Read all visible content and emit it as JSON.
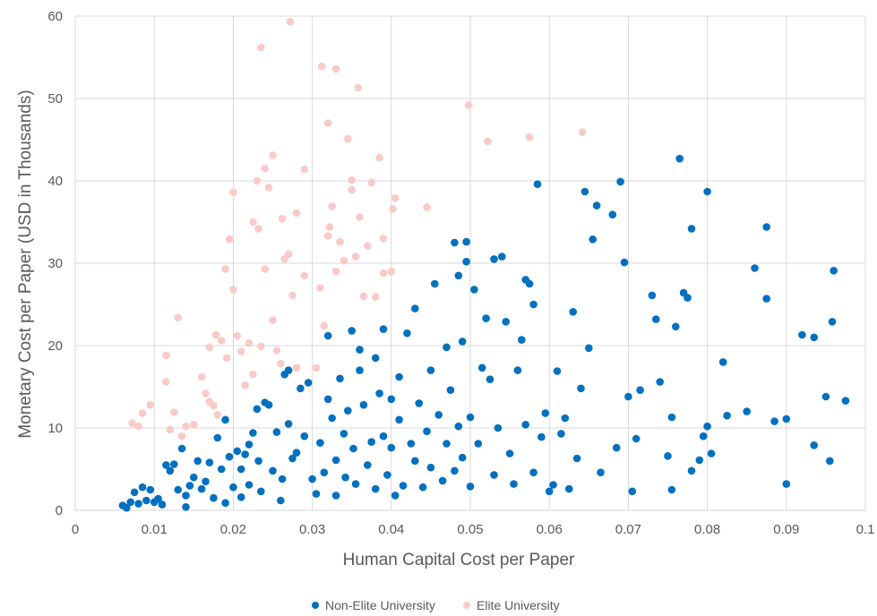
{
  "chart_data": {
    "type": "scatter",
    "title": "",
    "xlabel": "Human Capital Cost per Paper",
    "ylabel": "Monetary Cost per Paper (USD in Thousands)",
    "xlim": [
      0,
      0.1
    ],
    "ylim": [
      0,
      60
    ],
    "x_ticks": [
      "0",
      "0.01",
      "0.02",
      "0.03",
      "0.04",
      "0.05",
      "0.06",
      "0.07",
      "0.08",
      "0.09",
      "0.1"
    ],
    "y_ticks": [
      "0",
      "10",
      "20",
      "30",
      "40",
      "50",
      "60"
    ],
    "grid": true,
    "legend_position": "bottom",
    "series": [
      {
        "name": "Non-Elite University",
        "color": "#0070c0",
        "points": [
          [
            0.006,
            0.6
          ],
          [
            0.0065,
            0.3
          ],
          [
            0.007,
            1.0
          ],
          [
            0.0075,
            2.2
          ],
          [
            0.008,
            0.8
          ],
          [
            0.0085,
            2.8
          ],
          [
            0.009,
            1.2
          ],
          [
            0.0095,
            2.5
          ],
          [
            0.01,
            1.0
          ],
          [
            0.0105,
            1.4
          ],
          [
            0.011,
            0.7
          ],
          [
            0.0115,
            5.5
          ],
          [
            0.012,
            4.8
          ],
          [
            0.0125,
            5.6
          ],
          [
            0.013,
            2.5
          ],
          [
            0.0135,
            7.5
          ],
          [
            0.014,
            1.8
          ],
          [
            0.014,
            0.4
          ],
          [
            0.0145,
            3.0
          ],
          [
            0.015,
            4.0
          ],
          [
            0.0155,
            6.0
          ],
          [
            0.016,
            2.6
          ],
          [
            0.0165,
            3.5
          ],
          [
            0.017,
            5.8
          ],
          [
            0.0175,
            1.5
          ],
          [
            0.018,
            8.8
          ],
          [
            0.0185,
            5.0
          ],
          [
            0.019,
            11.0
          ],
          [
            0.019,
            0.9
          ],
          [
            0.0195,
            6.5
          ],
          [
            0.02,
            2.8
          ],
          [
            0.0205,
            7.2
          ],
          [
            0.021,
            1.6
          ],
          [
            0.021,
            5.0
          ],
          [
            0.0215,
            6.8
          ],
          [
            0.022,
            3.1
          ],
          [
            0.022,
            8.0
          ],
          [
            0.0225,
            9.4
          ],
          [
            0.023,
            12.3
          ],
          [
            0.0232,
            6.0
          ],
          [
            0.0235,
            2.3
          ],
          [
            0.024,
            13.1
          ],
          [
            0.0245,
            12.8
          ],
          [
            0.025,
            4.8
          ],
          [
            0.0255,
            9.5
          ],
          [
            0.026,
            1.2
          ],
          [
            0.0262,
            3.8
          ],
          [
            0.0265,
            16.5
          ],
          [
            0.027,
            17.0
          ],
          [
            0.027,
            10.5
          ],
          [
            0.0275,
            6.3
          ],
          [
            0.028,
            7.0
          ],
          [
            0.0285,
            14.8
          ],
          [
            0.029,
            9.0
          ],
          [
            0.0295,
            15.5
          ],
          [
            0.03,
            3.8
          ],
          [
            0.0305,
            2.0
          ],
          [
            0.031,
            8.2
          ],
          [
            0.0315,
            4.6
          ],
          [
            0.032,
            13.5
          ],
          [
            0.032,
            21.2
          ],
          [
            0.0325,
            11.2
          ],
          [
            0.033,
            1.8
          ],
          [
            0.033,
            6.1
          ],
          [
            0.0335,
            16.0
          ],
          [
            0.034,
            9.3
          ],
          [
            0.0342,
            4.0
          ],
          [
            0.0345,
            12.1
          ],
          [
            0.035,
            21.8
          ],
          [
            0.0352,
            7.5
          ],
          [
            0.0355,
            3.2
          ],
          [
            0.036,
            17.0
          ],
          [
            0.036,
            19.5
          ],
          [
            0.0365,
            12.8
          ],
          [
            0.037,
            5.5
          ],
          [
            0.0375,
            8.3
          ],
          [
            0.038,
            18.5
          ],
          [
            0.038,
            2.6
          ],
          [
            0.0385,
            14.2
          ],
          [
            0.039,
            22.0
          ],
          [
            0.039,
            9.0
          ],
          [
            0.0395,
            4.3
          ],
          [
            0.04,
            13.5
          ],
          [
            0.04,
            7.6
          ],
          [
            0.0405,
            1.8
          ],
          [
            0.041,
            16.2
          ],
          [
            0.041,
            11.0
          ],
          [
            0.0415,
            3.0
          ],
          [
            0.042,
            21.5
          ],
          [
            0.0425,
            8.1
          ],
          [
            0.043,
            24.5
          ],
          [
            0.043,
            6.0
          ],
          [
            0.0435,
            13.0
          ],
          [
            0.044,
            2.8
          ],
          [
            0.0445,
            9.6
          ],
          [
            0.045,
            17.0
          ],
          [
            0.045,
            5.2
          ],
          [
            0.0455,
            27.5
          ],
          [
            0.046,
            11.6
          ],
          [
            0.0465,
            3.6
          ],
          [
            0.047,
            19.8
          ],
          [
            0.047,
            8.1
          ],
          [
            0.0475,
            14.6
          ],
          [
            0.048,
            4.8
          ],
          [
            0.048,
            32.5
          ],
          [
            0.0485,
            28.5
          ],
          [
            0.0485,
            10.2
          ],
          [
            0.049,
            20.5
          ],
          [
            0.049,
            6.4
          ],
          [
            0.0495,
            32.6
          ],
          [
            0.0495,
            30.2
          ],
          [
            0.05,
            11.3
          ],
          [
            0.05,
            2.9
          ],
          [
            0.0505,
            26.8
          ],
          [
            0.051,
            8.1
          ],
          [
            0.0515,
            17.3
          ],
          [
            0.052,
            23.3
          ],
          [
            0.0525,
            15.9
          ],
          [
            0.053,
            4.3
          ],
          [
            0.053,
            30.5
          ],
          [
            0.0535,
            10.0
          ],
          [
            0.054,
            30.8
          ],
          [
            0.0545,
            22.9
          ],
          [
            0.055,
            6.9
          ],
          [
            0.0555,
            3.2
          ],
          [
            0.056,
            17.0
          ],
          [
            0.0565,
            20.7
          ],
          [
            0.057,
            28.0
          ],
          [
            0.057,
            10.4
          ],
          [
            0.0575,
            27.5
          ],
          [
            0.058,
            25.0
          ],
          [
            0.058,
            4.6
          ],
          [
            0.0585,
            39.6
          ],
          [
            0.059,
            8.9
          ],
          [
            0.0595,
            11.8
          ],
          [
            0.06,
            2.3
          ],
          [
            0.0605,
            3.1
          ],
          [
            0.061,
            16.9
          ],
          [
            0.0615,
            9.3
          ],
          [
            0.062,
            11.2
          ],
          [
            0.0625,
            2.6
          ],
          [
            0.063,
            24.1
          ],
          [
            0.0635,
            6.3
          ],
          [
            0.064,
            14.8
          ],
          [
            0.0645,
            38.7
          ],
          [
            0.065,
            19.7
          ],
          [
            0.0655,
            32.9
          ],
          [
            0.066,
            37.0
          ],
          [
            0.0665,
            4.6
          ],
          [
            0.068,
            35.9
          ],
          [
            0.0685,
            7.6
          ],
          [
            0.069,
            39.9
          ],
          [
            0.0695,
            30.1
          ],
          [
            0.07,
            13.8
          ],
          [
            0.0705,
            2.3
          ],
          [
            0.071,
            8.7
          ],
          [
            0.0715,
            14.6
          ],
          [
            0.073,
            26.1
          ],
          [
            0.0735,
            23.2
          ],
          [
            0.074,
            15.6
          ],
          [
            0.075,
            6.6
          ],
          [
            0.0755,
            11.3
          ],
          [
            0.0755,
            2.5
          ],
          [
            0.076,
            22.3
          ],
          [
            0.0765,
            42.7
          ],
          [
            0.077,
            26.4
          ],
          [
            0.0775,
            25.8
          ],
          [
            0.078,
            34.2
          ],
          [
            0.078,
            4.8
          ],
          [
            0.079,
            6.1
          ],
          [
            0.0795,
            9.0
          ],
          [
            0.08,
            10.2
          ],
          [
            0.08,
            38.7
          ],
          [
            0.0805,
            6.9
          ],
          [
            0.082,
            18.0
          ],
          [
            0.0825,
            11.5
          ],
          [
            0.085,
            12.0
          ],
          [
            0.086,
            29.4
          ],
          [
            0.0875,
            25.7
          ],
          [
            0.0875,
            34.4
          ],
          [
            0.0885,
            10.8
          ],
          [
            0.09,
            11.1
          ],
          [
            0.09,
            3.2
          ],
          [
            0.092,
            21.3
          ],
          [
            0.0935,
            21.0
          ],
          [
            0.0935,
            7.9
          ],
          [
            0.095,
            13.8
          ],
          [
            0.0955,
            6.0
          ],
          [
            0.0958,
            22.9
          ],
          [
            0.096,
            29.1
          ],
          [
            0.0975,
            13.3
          ]
        ]
      },
      {
        "name": "Elite University",
        "color": "#f8cbc9",
        "points": [
          [
            0.0072,
            10.6
          ],
          [
            0.008,
            10.2
          ],
          [
            0.0085,
            11.8
          ],
          [
            0.0095,
            12.8
          ],
          [
            0.0115,
            18.8
          ],
          [
            0.0115,
            15.6
          ],
          [
            0.012,
            9.8
          ],
          [
            0.0125,
            11.9
          ],
          [
            0.013,
            23.4
          ],
          [
            0.0135,
            9.0
          ],
          [
            0.014,
            10.2
          ],
          [
            0.015,
            10.4
          ],
          [
            0.016,
            16.2
          ],
          [
            0.0165,
            14.2
          ],
          [
            0.017,
            19.8
          ],
          [
            0.017,
            13.2
          ],
          [
            0.0175,
            12.7
          ],
          [
            0.0178,
            21.3
          ],
          [
            0.018,
            11.6
          ],
          [
            0.0185,
            20.6
          ],
          [
            0.019,
            29.3
          ],
          [
            0.0192,
            18.5
          ],
          [
            0.0195,
            32.9
          ],
          [
            0.02,
            38.6
          ],
          [
            0.02,
            26.8
          ],
          [
            0.0205,
            21.2
          ],
          [
            0.021,
            19.3
          ],
          [
            0.0215,
            15.2
          ],
          [
            0.022,
            20.3
          ],
          [
            0.0225,
            35.0
          ],
          [
            0.0225,
            16.5
          ],
          [
            0.023,
            40.0
          ],
          [
            0.0232,
            34.2
          ],
          [
            0.0235,
            19.9
          ],
          [
            0.0235,
            56.2
          ],
          [
            0.024,
            29.3
          ],
          [
            0.024,
            41.5
          ],
          [
            0.0245,
            39.2
          ],
          [
            0.025,
            23.1
          ],
          [
            0.025,
            43.1
          ],
          [
            0.0255,
            19.4
          ],
          [
            0.026,
            17.8
          ],
          [
            0.0262,
            35.4
          ],
          [
            0.0265,
            30.5
          ],
          [
            0.027,
            31.1
          ],
          [
            0.0272,
            59.3
          ],
          [
            0.0275,
            26.1
          ],
          [
            0.028,
            36.1
          ],
          [
            0.028,
            17.3
          ],
          [
            0.029,
            41.4
          ],
          [
            0.029,
            28.5
          ],
          [
            0.0305,
            17.3
          ],
          [
            0.031,
            27.0
          ],
          [
            0.0312,
            53.9
          ],
          [
            0.0315,
            22.4
          ],
          [
            0.032,
            33.3
          ],
          [
            0.032,
            47.0
          ],
          [
            0.0322,
            34.4
          ],
          [
            0.0325,
            36.9
          ],
          [
            0.033,
            29.0
          ],
          [
            0.033,
            53.6
          ],
          [
            0.0335,
            32.6
          ],
          [
            0.034,
            30.3
          ],
          [
            0.0345,
            45.1
          ],
          [
            0.035,
            40.1
          ],
          [
            0.035,
            38.9
          ],
          [
            0.0355,
            30.8
          ],
          [
            0.0358,
            51.3
          ],
          [
            0.036,
            35.6
          ],
          [
            0.0365,
            26.0
          ],
          [
            0.037,
            32.1
          ],
          [
            0.0375,
            39.8
          ],
          [
            0.038,
            25.9
          ],
          [
            0.0385,
            42.8
          ],
          [
            0.039,
            33.0
          ],
          [
            0.039,
            28.8
          ],
          [
            0.04,
            29.0
          ],
          [
            0.0402,
            36.6
          ],
          [
            0.0405,
            37.9
          ],
          [
            0.0445,
            36.8
          ],
          [
            0.0498,
            49.2
          ],
          [
            0.0522,
            44.8
          ],
          [
            0.0575,
            45.3
          ],
          [
            0.0642,
            45.9
          ]
        ]
      }
    ]
  }
}
